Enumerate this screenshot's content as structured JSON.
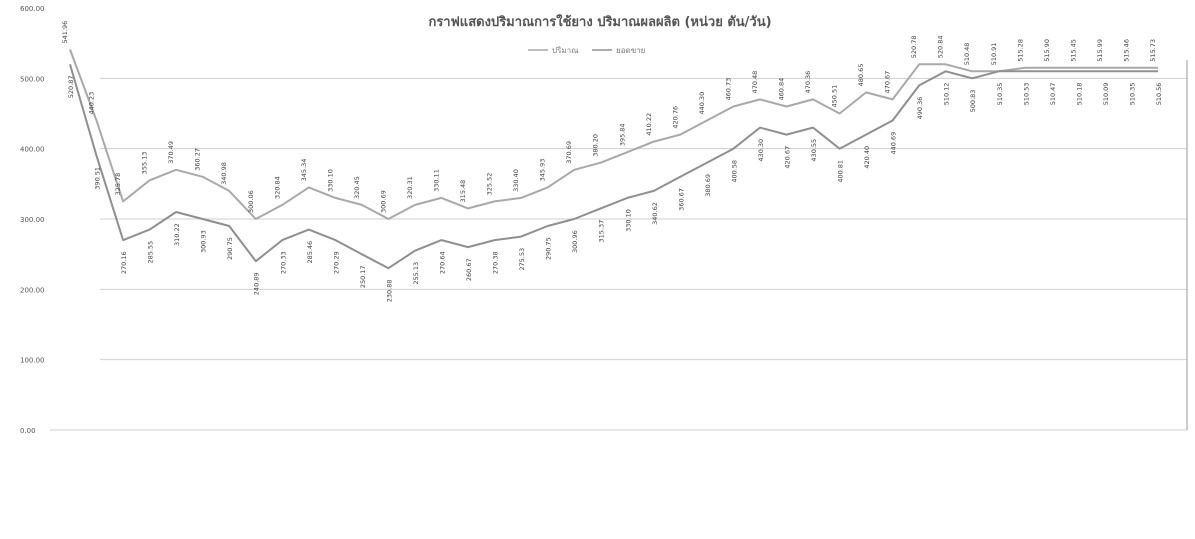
{
  "chart_data": {
    "type": "line",
    "title": "กราฟแสดงปริมาณการใช้ยาง ปริมาณผลผลิต (หน่วย ตัน/วัน)",
    "legend": [
      "ปริมาณ",
      "ยอดขาย"
    ],
    "legend_position": "top-center",
    "ylim": [
      0,
      600
    ],
    "y_ticks": [
      "0.00",
      "100.00",
      "200.00",
      "300.00",
      "400.00",
      "500.00",
      "600.00"
    ],
    "grid": true,
    "categories": [
      "",
      "",
      "",
      "",
      "",
      "",
      "",
      "",
      "",
      "",
      "",
      "",
      "",
      "",
      "",
      "",
      "",
      "",
      "",
      "",
      "",
      "",
      "",
      "",
      "",
      "",
      "",
      "",
      "",
      "",
      "",
      "",
      "",
      "",
      "",
      "",
      "",
      "",
      "",
      "",
      "",
      ""
    ],
    "series": [
      {
        "name": "ปริมาณ",
        "color": "#a9a9a9",
        "values": [
          541,
          440,
          325,
          355,
          370,
          360,
          340,
          300,
          320,
          345,
          330,
          320,
          300,
          320,
          330,
          315,
          325,
          330,
          345,
          370,
          380,
          395,
          410,
          420,
          440,
          460,
          470,
          460,
          470,
          450,
          480,
          470,
          520,
          520,
          510,
          510,
          515,
          515,
          515,
          515,
          515,
          515
        ]
      },
      {
        "name": "ยอดขาย",
        "color": "#8f8f8f",
        "values": [
          520,
          390,
          270,
          285,
          310,
          300,
          290,
          240,
          270,
          285,
          270,
          250,
          230,
          255,
          270,
          260,
          270,
          275,
          290,
          300,
          315,
          330,
          340,
          360,
          380,
          400,
          430,
          420,
          430,
          400,
          420,
          440,
          490,
          510,
          500,
          510,
          510,
          510,
          510,
          510,
          510,
          510
        ]
      }
    ],
    "data_labels": [
      [
        "541.96",
        "440.23",
        "325.78",
        "355.13",
        "370.49",
        "360.27",
        "340.98",
        "300.06",
        "320.84",
        "345.34",
        "330.10",
        "320.45",
        "300.69",
        "320.31",
        "330.11",
        "315.48",
        "325.52",
        "330.40",
        "345.93",
        "370.69",
        "380.20",
        "395.84",
        "410.22",
        "420.76",
        "440.30",
        "460.73",
        "470.48",
        "460.84",
        "470.36",
        "450.51",
        "480.65",
        "470.67",
        "520.78",
        "520.84",
        "510.48",
        "510.91",
        "515.28",
        "515.90",
        "515.45",
        "515.99",
        "515.46",
        "515.73"
      ],
      [
        "520.87",
        "390.51",
        "270.16",
        "285.55",
        "310.22",
        "300.93",
        "290.75",
        "240.89",
        "270.33",
        "285.46",
        "270.29",
        "250.17",
        "230.88",
        "255.13",
        "270.64",
        "260.67",
        "270.38",
        "275.53",
        "290.75",
        "300.96",
        "315.37",
        "330.10",
        "340.62",
        "360.67",
        "380.69",
        "400.58",
        "430.30",
        "420.67",
        "430.55",
        "400.81",
        "420.40",
        "440.69",
        "490.36",
        "510.12",
        "500.83",
        "510.35",
        "510.53",
        "510.47",
        "510.18",
        "510.09",
        "510.35",
        "510.56"
      ]
    ]
  }
}
